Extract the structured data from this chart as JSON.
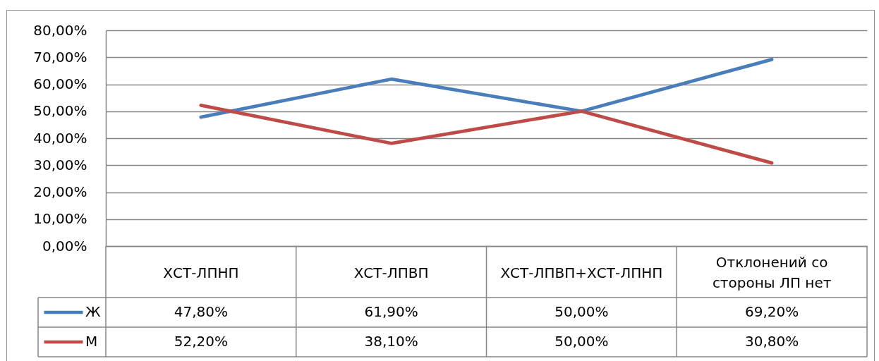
{
  "chart_data": {
    "type": "line",
    "categories": [
      "ХСТ-ЛПНП",
      "ХСТ-ЛПВП",
      "ХСТ-ЛПВП+ХСТ-ЛПНП",
      "Отклонений со стороны ЛП нет"
    ],
    "series": [
      {
        "name": "Ж",
        "color": "#4a7ebb",
        "values": [
          47.8,
          61.9,
          50,
          69.2
        ],
        "value_labels": [
          "47,80%",
          "61,90%",
          "50,00%",
          "69,20%"
        ]
      },
      {
        "name": "М",
        "color": "#be4b48",
        "values": [
          52.2,
          38.1,
          50,
          30.8
        ],
        "value_labels": [
          "52,20%",
          "38,10%",
          "50,00%",
          "30,80%"
        ]
      }
    ],
    "ylim": [
      0,
      80
    ],
    "yticks": [
      {
        "value": 0,
        "label": "0,00%"
      },
      {
        "value": 10,
        "label": "10,00%"
      },
      {
        "value": 20,
        "label": "20,00%"
      },
      {
        "value": 30,
        "label": "30,00%"
      },
      {
        "value": 40,
        "label": "40,00%"
      },
      {
        "value": 50,
        "label": "50,00%"
      },
      {
        "value": 60,
        "label": "60,00%"
      },
      {
        "value": 70,
        "label": "70,00%"
      },
      {
        "value": 80,
        "label": "80,00%"
      }
    ],
    "grid": "y",
    "legend": "bottom left"
  }
}
